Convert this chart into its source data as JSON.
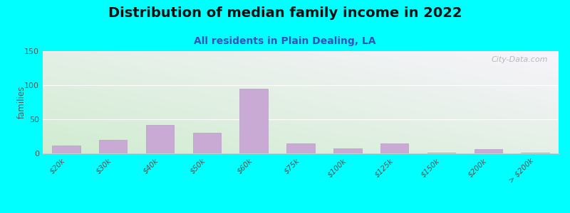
{
  "title": "Distribution of median family income in 2022",
  "subtitle": "All residents in Plain Dealing, LA",
  "ylabel": "families",
  "categories": [
    "$20k",
    "$30k",
    "$40k",
    "$50k",
    "$60k",
    "$75k",
    "$100k",
    "$125k",
    "$150k",
    "$200k",
    "> $200k"
  ],
  "values": [
    11,
    20,
    42,
    30,
    95,
    15,
    7,
    15,
    1,
    6,
    1
  ],
  "bar_color": "#c9aad4",
  "bar_edge_color": "#b89ec4",
  "ylim": [
    0,
    150
  ],
  "yticks": [
    0,
    50,
    100,
    150
  ],
  "bg_color_topleft": "#d0ecd0",
  "bg_color_bottomright": "#f8f4fc",
  "outer_bg": "#00ffff",
  "title_fontsize": 14,
  "subtitle_fontsize": 10,
  "watermark": "City-Data.com"
}
